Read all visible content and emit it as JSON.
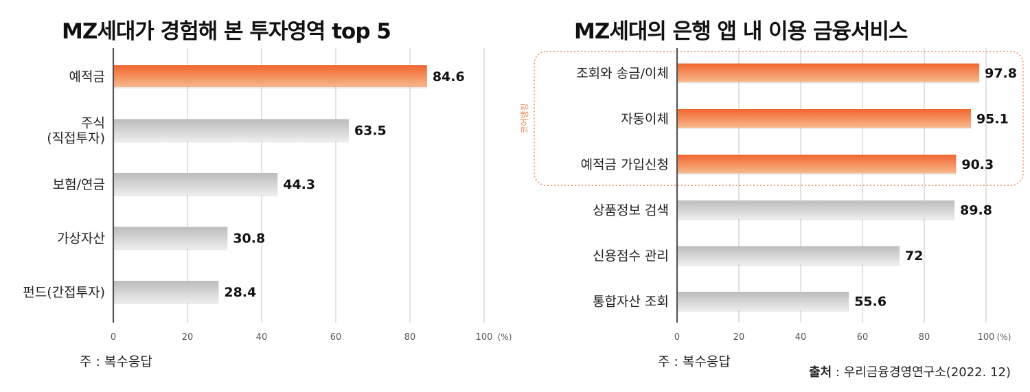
{
  "colors": {
    "highlight_top": "#f2662f",
    "highlight_bottom": "#f7b98c",
    "gray_top": "#bcbcbc",
    "gray_bottom": "#ececec",
    "axis": "#555555",
    "grid": "#cfcfcf",
    "bracket": "#f08a50"
  },
  "chart_data": [
    {
      "type": "bar",
      "orientation": "horizontal",
      "title": "MZ세대가 경험해 본 투자영역 top 5",
      "categories": [
        [
          "예적금"
        ],
        [
          "주식",
          "(직접투자)"
        ],
        [
          "보험/연금"
        ],
        [
          "가상자산"
        ],
        [
          "펀드(간접투자)"
        ]
      ],
      "values": [
        84.6,
        63.5,
        44.3,
        30.8,
        28.4
      ],
      "value_labels": [
        "84.6",
        "63.5",
        "44.3",
        "30.8",
        "28.4"
      ],
      "highlighted": [
        true,
        false,
        false,
        false,
        false
      ],
      "xlim": [
        0,
        100
      ],
      "xticks": [
        "0",
        "20",
        "40",
        "60",
        "80",
        "100"
      ],
      "xticks_values": [
        0,
        20,
        40,
        60,
        80,
        100
      ],
      "unit": "(%)",
      "note": "주 : 복수응답"
    },
    {
      "type": "bar",
      "orientation": "horizontal",
      "title": "MZ세대의 은행 앱 내 이용 금융서비스",
      "categories": [
        [
          "조회와 송금/이체"
        ],
        [
          "자동이체"
        ],
        [
          "예적금 가입신청"
        ],
        [
          "상품정보 검색"
        ],
        [
          "신용점수 관리"
        ],
        [
          "통합자산 조회"
        ]
      ],
      "values": [
        97.8,
        95.1,
        90.3,
        89.8,
        72,
        55.6
      ],
      "value_labels": [
        "97.8",
        "95.1",
        "90.3",
        "89.8",
        "72",
        "55.6"
      ],
      "highlighted": [
        true,
        true,
        true,
        false,
        false,
        false
      ],
      "group_label": "코어뱅킹",
      "xlim": [
        0,
        100
      ],
      "xticks": [
        "0",
        "20",
        "40",
        "60",
        "80",
        "100"
      ],
      "xticks_values": [
        0,
        20,
        40,
        60,
        80,
        100
      ],
      "unit": "(%)",
      "note": "주 : 복수응답"
    }
  ],
  "source": {
    "label": "출처",
    "text": " : 우리금융경영연구소(2022. 12)"
  }
}
